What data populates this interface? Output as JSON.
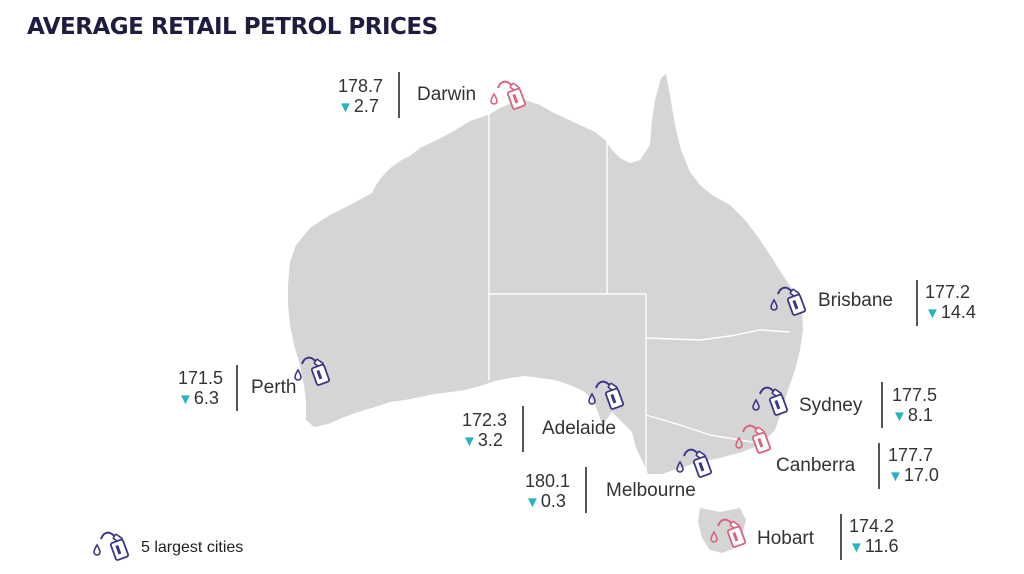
{
  "title": "AVERAGE RETAIL PETROL PRICES",
  "colors": {
    "land": "#d5d5d5",
    "border": "#ffffff",
    "largest_city": "#3b3685",
    "other_city": "#d9627f",
    "decrease": "#2bb3bd"
  },
  "legend": {
    "icon": "fuel-pump-icon",
    "label": "5 largest cities"
  },
  "cities": [
    {
      "id": "darwin",
      "name": "Darwin",
      "price": "178.7",
      "change": "2.7",
      "direction": "down",
      "largest": false
    },
    {
      "id": "brisbane",
      "name": "Brisbane",
      "price": "177.2",
      "change": "14.4",
      "direction": "down",
      "largest": true
    },
    {
      "id": "perth",
      "name": "Perth",
      "price": "171.5",
      "change": "6.3",
      "direction": "down",
      "largest": true
    },
    {
      "id": "adelaide",
      "name": "Adelaide",
      "price": "172.3",
      "change": "3.2",
      "direction": "down",
      "largest": true
    },
    {
      "id": "sydney",
      "name": "Sydney",
      "price": "177.5",
      "change": "8.1",
      "direction": "down",
      "largest": true
    },
    {
      "id": "canberra",
      "name": "Canberra",
      "price": "177.7",
      "change": "17.0",
      "direction": "down",
      "largest": false
    },
    {
      "id": "melbourne",
      "name": "Melbourne",
      "price": "180.1",
      "change": "0.3",
      "direction": "down",
      "largest": true
    },
    {
      "id": "hobart",
      "name": "Hobart",
      "price": "174.2",
      "change": "11.6",
      "direction": "down",
      "largest": false
    }
  ]
}
